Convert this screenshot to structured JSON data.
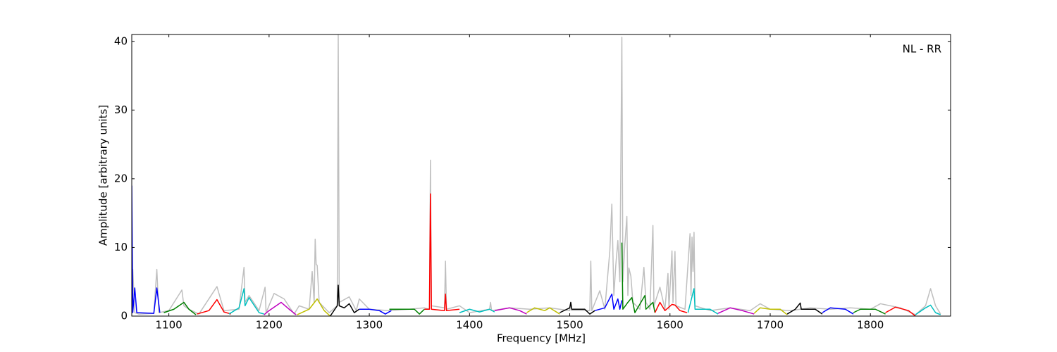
{
  "chart_data": {
    "type": "line",
    "x_label": "Frequency [MHz]",
    "y_label": "Amplitude [arbitrary units]",
    "annotation": "NL - RR",
    "xlim": [
      1063,
      1880
    ],
    "ylim": [
      0,
      41
    ],
    "xticks": [
      1100,
      1200,
      1300,
      1400,
      1500,
      1600,
      1700,
      1800
    ],
    "yticks": [
      0,
      10,
      20,
      30,
      40
    ],
    "series": [
      {
        "color": "#bfbfbf",
        "x": [
          1063,
          1064,
          1066,
          1070,
          1085,
          1088,
          1090,
          1100,
          1113,
          1115,
          1120,
          1130,
          1148,
          1155,
          1170,
          1175,
          1176,
          1180,
          1190,
          1196,
          1197,
          1205,
          1215,
          1225,
          1230,
          1240,
          1243,
          1245,
          1246,
          1247,
          1248,
          1250,
          1260,
          1268,
          1269,
          1270,
          1280,
          1287,
          1290,
          1300,
          1320,
          1340,
          1355,
          1360,
          1361,
          1362,
          1375,
          1376,
          1377,
          1390,
          1400,
          1420,
          1421,
          1422,
          1440,
          1460,
          1480,
          1500,
          1501,
          1502,
          1520,
          1521,
          1522,
          1530,
          1535,
          1540,
          1542,
          1544,
          1546,
          1548,
          1550,
          1552,
          1553,
          1555,
          1557,
          1558,
          1559,
          1561,
          1563,
          1570,
          1574,
          1576,
          1580,
          1583,
          1584,
          1590,
          1595,
          1598,
          1599,
          1602,
          1603,
          1605,
          1606,
          1615,
          1620,
          1621,
          1622,
          1623,
          1624,
          1625,
          1640,
          1660,
          1680,
          1690,
          1700,
          1720,
          1740,
          1760,
          1780,
          1800,
          1810,
          1830,
          1845,
          1855,
          1860,
          1865,
          1870
        ],
        "values": [
          1.0,
          6.8,
          0.5,
          0.3,
          0.4,
          6.8,
          0.5,
          0.8,
          3.8,
          1.5,
          1.0,
          0.3,
          4.3,
          0.8,
          1.0,
          7.1,
          2.0,
          3.0,
          0.8,
          4.2,
          0.5,
          3.3,
          2.5,
          0.3,
          1.5,
          1.0,
          6.5,
          2.0,
          11.2,
          7.5,
          7.4,
          2.0,
          0.5,
          1.5,
          41,
          2.0,
          2.8,
          0.8,
          2.5,
          1.0,
          0.8,
          1.0,
          1.2,
          1.0,
          22.7,
          1.5,
          1.2,
          8.0,
          1.0,
          1.5,
          0.5,
          1.0,
          2.0,
          0.8,
          1.2,
          1.0,
          1.2,
          0.8,
          2.0,
          0.8,
          0.8,
          8.0,
          0.8,
          3.7,
          1.0,
          9.5,
          16.3,
          3,
          7.5,
          11,
          5,
          40.6,
          5,
          10.5,
          14.5,
          3,
          7,
          5.8,
          2,
          1,
          7.1,
          2,
          1,
          13.2,
          1.5,
          4.2,
          1,
          6.2,
          1,
          9.5,
          2,
          9.4,
          1.5,
          1.0,
          12,
          3,
          11.5,
          6.5,
          12.2,
          1.5,
          0.8,
          1.2,
          0.8,
          1.8,
          1.0,
          0.8,
          1.2,
          1.0,
          1.2,
          1.0,
          1.8,
          1.2,
          0.2,
          1.5,
          4.0,
          1.5,
          0.3
        ]
      },
      {
        "color": "#0000ff",
        "x": [
          1063,
          1064,
          1066,
          1068,
          1085,
          1088,
          1091
        ],
        "values": [
          19,
          0.5,
          4.1,
          0.5,
          0.4,
          4.1,
          0.5
        ]
      },
      {
        "color": "#008000",
        "x": [
          1095,
          1105,
          1115,
          1120,
          1127
        ],
        "values": [
          0.5,
          1,
          2,
          1,
          0.2
        ]
      },
      {
        "color": "#ff0000",
        "x": [
          1128,
          1140,
          1148,
          1155,
          1162
        ],
        "values": [
          0.3,
          0.8,
          2.4,
          0.6,
          0.3
        ]
      },
      {
        "color": "#00bfbf",
        "x": [
          1160,
          1170,
          1175,
          1176,
          1180,
          1190,
          1195
        ],
        "values": [
          0.3,
          1.2,
          4.0,
          1.5,
          2.7,
          0.5,
          0.3
        ]
      },
      {
        "color": "#bf00bf",
        "x": [
          1195,
          1200,
          1212,
          1220,
          1227
        ],
        "values": [
          0.2,
          0.8,
          2,
          1,
          0.2
        ]
      },
      {
        "color": "#bfbf00",
        "x": [
          1228,
          1240,
          1248,
          1255,
          1261
        ],
        "values": [
          0.2,
          1,
          2.5,
          0.8,
          0
        ]
      },
      {
        "color": "#000000",
        "x": [
          1261,
          1268,
          1269,
          1270,
          1275,
          1280,
          1285,
          1290
        ],
        "values": [
          0,
          1.5,
          4.5,
          1.5,
          1.2,
          1.8,
          0.5,
          1
        ]
      },
      {
        "color": "#0000ff",
        "x": [
          1290,
          1300,
          1310,
          1316,
          1322
        ],
        "values": [
          1,
          1,
          0.8,
          0.3,
          0.8
        ]
      },
      {
        "color": "#008000",
        "x": [
          1320,
          1335,
          1345,
          1350,
          1355
        ],
        "values": [
          1,
          1,
          1,
          0.3,
          1
        ]
      },
      {
        "color": "#ff0000",
        "x": [
          1355,
          1360,
          1361,
          1362,
          1375,
          1376,
          1377,
          1390
        ],
        "values": [
          1,
          1,
          17.8,
          1,
          0.8,
          3.2,
          0.8,
          1
        ]
      },
      {
        "color": "#00bfbf",
        "x": [
          1390,
          1400,
          1410,
          1420,
          1425
        ],
        "values": [
          0.5,
          1,
          0.6,
          1,
          0.6
        ]
      },
      {
        "color": "#bf00bf",
        "x": [
          1425,
          1440,
          1450,
          1457
        ],
        "values": [
          0.8,
          1.2,
          0.8,
          0.3
        ]
      },
      {
        "color": "#bfbf00",
        "x": [
          1457,
          1465,
          1475,
          1480,
          1490
        ],
        "values": [
          0.5,
          1.2,
          0.8,
          1.2,
          0.3
        ]
      },
      {
        "color": "#000000",
        "x": [
          1490,
          1500,
          1501,
          1502,
          1515,
          1520,
          1525
        ],
        "values": [
          0.5,
          1.2,
          2,
          1,
          1,
          0.3,
          0.8
        ]
      },
      {
        "color": "#0000ff",
        "x": [
          1525,
          1535,
          1542,
          1544,
          1548,
          1550,
          1552
        ],
        "values": [
          0.8,
          1.2,
          3.2,
          1,
          2.5,
          1,
          2.3
        ]
      },
      {
        "color": "#008000",
        "x": [
          1552,
          1553,
          1558,
          1562,
          1565,
          1575,
          1576,
          1583,
          1585
        ],
        "values": [
          10.7,
          1,
          2,
          2.7,
          0.5,
          3,
          1,
          2,
          0.5
        ]
      },
      {
        "color": "#ff0000",
        "x": [
          1585,
          1590,
          1595,
          1602,
          1605,
          1610,
          1617
        ],
        "values": [
          0.5,
          2,
          0.8,
          1.7,
          1.6,
          0.8,
          0.5
        ]
      },
      {
        "color": "#00bfbf",
        "x": [
          1618,
          1624,
          1625,
          1640,
          1648
        ],
        "values": [
          0.5,
          4,
          1,
          1,
          0.3
        ]
      },
      {
        "color": "#bf00bf",
        "x": [
          1648,
          1660,
          1672,
          1684
        ],
        "values": [
          0.4,
          1.2,
          0.8,
          0.3
        ]
      },
      {
        "color": "#bfbf00",
        "x": [
          1684,
          1690,
          1700,
          1710,
          1717
        ],
        "values": [
          0.4,
          1.2,
          1,
          1,
          0.2
        ]
      },
      {
        "color": "#000000",
        "x": [
          1717,
          1725,
          1730,
          1731,
          1745,
          1752
        ],
        "values": [
          0.3,
          1,
          1.9,
          1,
          1,
          0.3
        ]
      },
      {
        "color": "#0000ff",
        "x": [
          1752,
          1760,
          1775,
          1783
        ],
        "values": [
          0.5,
          1.2,
          1,
          0.3
        ]
      },
      {
        "color": "#008000",
        "x": [
          1783,
          1790,
          1805,
          1815
        ],
        "values": [
          0.5,
          1,
          1,
          0.3
        ]
      },
      {
        "color": "#ff0000",
        "x": [
          1815,
          1825,
          1838,
          1845
        ],
        "values": [
          0.5,
          1.3,
          0.8,
          0
        ]
      },
      {
        "color": "#00bfbf",
        "x": [
          1845,
          1855,
          1860,
          1865,
          1870
        ],
        "values": [
          0.2,
          1.2,
          1.6,
          0.5,
          0.2
        ]
      }
    ]
  }
}
